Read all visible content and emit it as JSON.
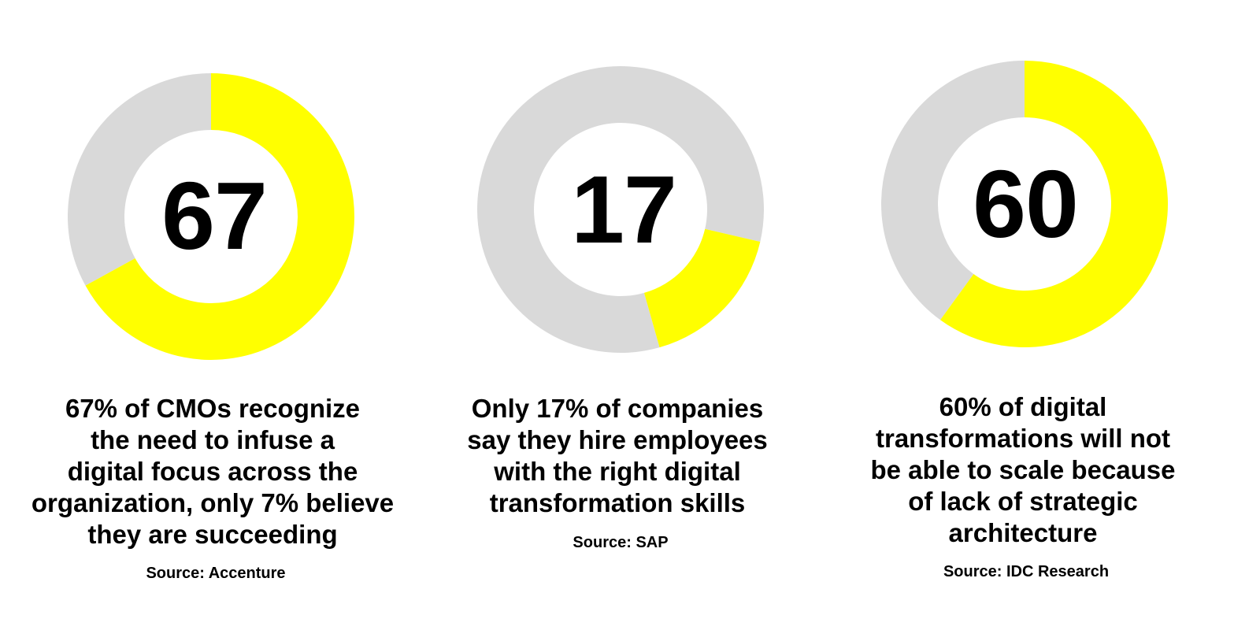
{
  "colors": {
    "filled": "#ffff00",
    "remainder": "#d9d9d9",
    "text": "#000000",
    "background": "#ffffff"
  },
  "chart_data": [
    {
      "type": "pie",
      "variant": "donut",
      "value_percent": 67,
      "remainder_percent": 33,
      "center_label": "67",
      "caption": "67% of CMOs recognize\nthe need to infuse a\ndigital focus across the\norganization, only 7% believe\nthey are succeeding",
      "source": "Source: Accenture",
      "start_angle_deg": 0
    },
    {
      "type": "pie",
      "variant": "donut",
      "value_percent": 17,
      "remainder_percent": 83,
      "center_label": "17",
      "caption": "Only 17% of companies\nsay they hire employees\nwith the right digital\ntransformation skills",
      "source": "Source: SAP",
      "start_angle_deg": 103
    },
    {
      "type": "pie",
      "variant": "donut",
      "value_percent": 60,
      "remainder_percent": 40,
      "center_label": "60",
      "caption": "60% of digital\ntransformations will not\nbe able to scale because\nof lack of strategic\narchitecture",
      "source": "Source: IDC Research",
      "start_angle_deg": 0
    }
  ]
}
